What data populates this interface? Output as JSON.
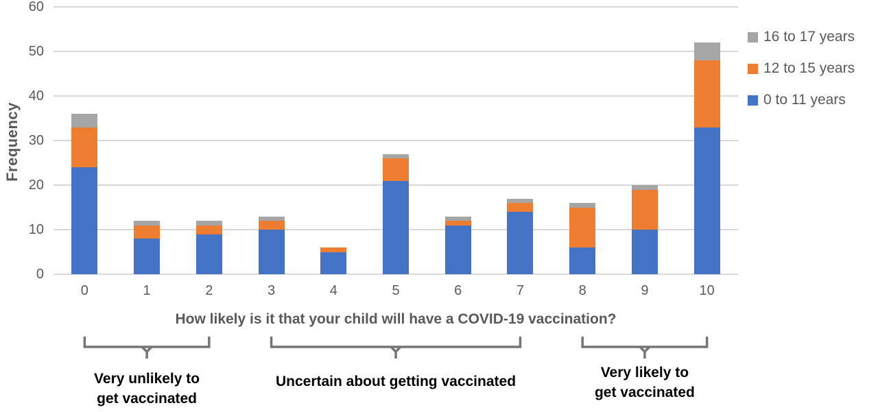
{
  "chart_data": {
    "type": "bar",
    "stacked": true,
    "categories": [
      "0",
      "1",
      "2",
      "3",
      "4",
      "5",
      "6",
      "7",
      "8",
      "9",
      "10"
    ],
    "series": [
      {
        "name": "0 to 11 years",
        "color": "#4472c4",
        "values": [
          24,
          8,
          9,
          10,
          5,
          21,
          11,
          14,
          6,
          10,
          33
        ]
      },
      {
        "name": "12 to 15 years",
        "color": "#ed7d31",
        "values": [
          9,
          3,
          2,
          2,
          1,
          5,
          1,
          2,
          9,
          9,
          15
        ]
      },
      {
        "name": "16 to 17 years",
        "color": "#a5a5a5",
        "values": [
          3,
          1,
          1,
          1,
          0,
          1,
          1,
          1,
          1,
          1,
          4
        ]
      }
    ],
    "stack_totals": [
      36,
      12,
      12,
      13,
      6,
      27,
      13,
      17,
      16,
      20,
      52
    ],
    "xlabel": "How likely is it that your child will have a COVID-19 vaccination?",
    "ylabel": "Frequency",
    "ylim": [
      0,
      60
    ],
    "ytick_step": 10,
    "grid": true,
    "legend_position": "right",
    "legend_order_top_to_bottom": [
      "16 to 17 years",
      "12 to 15 years",
      "0 to 11 years"
    ]
  },
  "annotations": [
    {
      "label": "Very unlikely to get vaccinated",
      "lines": [
        "Very unlikely to",
        "get vaccinated"
      ],
      "from_category": 0,
      "to_category": 2,
      "pointer_category": 1
    },
    {
      "label": "Uncertain about getting vaccinated",
      "lines": [
        "Uncertain about getting vaccinated"
      ],
      "from_category": 3,
      "to_category": 7,
      "pointer_category": 5
    },
    {
      "label": "Very likely to get vaccinated",
      "lines": [
        "Very likely to",
        "get vaccinated"
      ],
      "from_category": 8,
      "to_category": 10,
      "pointer_category": 9
    }
  ],
  "colors": {
    "grid": "#d9d9d9",
    "axis_text": "#595959",
    "annotation_text": "#000000",
    "brace": "#757575"
  }
}
